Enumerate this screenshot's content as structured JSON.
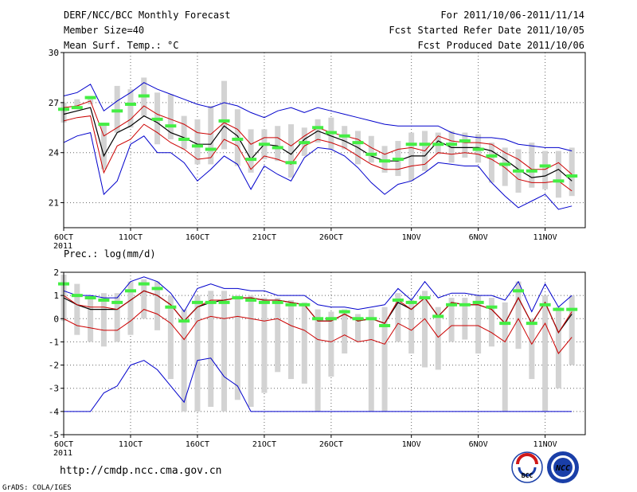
{
  "header": {
    "title": "DERF/NCC/BCC Monthly Forecast",
    "member_size": "Member Size=40",
    "variable": "Mean Surf. Temp.: °C",
    "period": "For 2011/10/06-2011/11/14",
    "started": "Fcst Started Refer Date 2011/10/05",
    "produced": "Fcst Produced Date 2011/10/06"
  },
  "footer": {
    "url": "http://cmdp.ncc.cma.gov.cn",
    "grads_credit": "GrADS: COLA/IGES",
    "logo_bcc_text": "BCC",
    "logo_ncc_text": "NCC"
  },
  "colors": {
    "ensemble_range": "#0000cc",
    "spread": "#cc0000",
    "mean": "#000000",
    "bar": "#d3d3d3",
    "marker": "#44ee44",
    "grid": "#666666"
  },
  "chart_data": [
    {
      "type": "line",
      "title": "Mean Surf. Temp.: °C",
      "ylim": [
        19.5,
        30
      ],
      "yticks": [
        21,
        24,
        27,
        30
      ],
      "day_range": [
        6,
        45
      ],
      "xtick_days": [
        6,
        11,
        16,
        21,
        26,
        32,
        37,
        42
      ],
      "xtick_labels": [
        "6OCT\n2011",
        "11OCT",
        "16OCT",
        "21OCT",
        "26OCT",
        "1NOV",
        "6NOV",
        "11NOV"
      ],
      "days": [
        6,
        7,
        8,
        9,
        10,
        11,
        12,
        13,
        14,
        15,
        16,
        17,
        18,
        19,
        20,
        21,
        22,
        23,
        24,
        25,
        26,
        27,
        28,
        29,
        30,
        31,
        32,
        33,
        34,
        35,
        36,
        37,
        38,
        39,
        40,
        41,
        42,
        43,
        44
      ],
      "series": [
        {
          "name": "ensemble-max",
          "values": [
            27.4,
            27.6,
            28.1,
            26.5,
            27.1,
            27.6,
            28.2,
            27.8,
            27.5,
            27.2,
            26.9,
            26.7,
            27.0,
            26.8,
            26.4,
            26.1,
            26.5,
            26.7,
            26.4,
            26.7,
            26.5,
            26.3,
            26.1,
            25.9,
            25.7,
            25.6,
            25.6,
            25.6,
            25.6,
            25.2,
            25.0,
            24.9,
            24.9,
            24.8,
            24.5,
            24.4,
            24.3,
            24.3,
            24.1
          ]
        },
        {
          "name": "spread-upper",
          "values": [
            26.7,
            26.8,
            27.1,
            25.0,
            25.5,
            26.0,
            26.8,
            26.3,
            26.0,
            25.7,
            25.2,
            25.1,
            25.8,
            25.4,
            24.5,
            24.9,
            24.9,
            24.4,
            25.0,
            25.5,
            25.2,
            25.0,
            24.8,
            24.3,
            23.9,
            24.2,
            24.3,
            24.1,
            25.0,
            24.7,
            24.6,
            24.6,
            24.5,
            24.0,
            23.6,
            23.0,
            23.0,
            23.4,
            22.7
          ]
        },
        {
          "name": "ensemble-mean",
          "values": [
            26.3,
            26.5,
            26.7,
            23.8,
            25.2,
            25.6,
            26.2,
            25.8,
            25.2,
            24.9,
            24.5,
            24.5,
            25.6,
            25.0,
            23.6,
            24.5,
            24.4,
            23.9,
            24.8,
            25.3,
            25.0,
            24.7,
            24.3,
            23.8,
            23.5,
            23.5,
            23.8,
            23.8,
            24.7,
            24.3,
            24.3,
            24.3,
            24.1,
            23.6,
            23.0,
            22.5,
            22.6,
            23.0,
            22.3
          ]
        },
        {
          "name": "spread-lower",
          "values": [
            25.9,
            26.1,
            26.2,
            22.8,
            24.4,
            24.8,
            25.7,
            25.2,
            24.6,
            24.2,
            23.6,
            23.7,
            24.8,
            24.4,
            23.0,
            23.8,
            23.6,
            23.3,
            24.4,
            24.8,
            24.6,
            24.3,
            23.8,
            23.3,
            23.0,
            23.0,
            23.2,
            23.3,
            24.0,
            23.9,
            24.0,
            23.9,
            23.6,
            23.1,
            22.4,
            22.2,
            22.2,
            22.3,
            21.7
          ]
        },
        {
          "name": "ensemble-min",
          "values": [
            24.6,
            25.0,
            25.2,
            21.5,
            22.3,
            24.5,
            25.0,
            24.0,
            24.0,
            23.4,
            22.3,
            23.0,
            23.8,
            23.3,
            21.8,
            23.2,
            22.7,
            22.3,
            23.7,
            24.3,
            24.2,
            23.8,
            23.1,
            22.2,
            21.5,
            22.1,
            22.3,
            22.8,
            23.4,
            23.3,
            23.2,
            23.2,
            22.2,
            21.4,
            20.7,
            21.1,
            21.5,
            20.6,
            20.8
          ]
        }
      ],
      "bars_low": [
        25.8,
        26.6,
        26.9,
        23.0,
        25.2,
        25.5,
        26.2,
        24.5,
        24.8,
        24.2,
        23.3,
        23.3,
        24.2,
        23.2,
        22.8,
        23.6,
        23.5,
        22.5,
        23.8,
        24.6,
        24.2,
        24.2,
        23.3,
        23.4,
        22.8,
        22.6,
        22.3,
        22.9,
        23.9,
        23.4,
        23.7,
        23.4,
        22.2,
        22.0,
        21.6,
        21.9,
        21.8,
        21.3,
        21.4
      ],
      "bars_high": [
        27.0,
        27.2,
        27.4,
        25.8,
        28.0,
        27.8,
        28.5,
        27.6,
        27.5,
        26.2,
        26.0,
        26.8,
        28.3,
        26.6,
        25.4,
        25.4,
        25.6,
        25.7,
        25.5,
        26.0,
        26.1,
        25.6,
        25.3,
        25.0,
        24.4,
        24.7,
        25.2,
        25.3,
        25.2,
        25.3,
        25.2,
        25.1,
        24.6,
        24.3,
        24.2,
        24.6,
        24.1,
        24.1,
        24.3
      ],
      "markers": [
        26.6,
        26.7,
        27.3,
        25.7,
        26.5,
        26.9,
        27.4,
        26.0,
        25.6,
        24.8,
        24.4,
        24.2,
        25.9,
        24.8,
        23.6,
        24.5,
        24.3,
        23.4,
        24.6,
        25.5,
        25.2,
        25.0,
        24.6,
        23.9,
        23.5,
        23.6,
        24.5,
        24.5,
        24.5,
        24.5,
        24.7,
        24.2,
        23.8,
        23.3,
        22.9,
        22.9,
        23.2,
        22.3,
        22.6
      ]
    },
    {
      "type": "line",
      "title": "Prec.: log(mm/d)",
      "ylim": [
        -5,
        2
      ],
      "yticks": [
        -5,
        -4,
        -3,
        -2,
        -1,
        0,
        1,
        2
      ],
      "day_range": [
        6,
        45
      ],
      "xtick_days": [
        6,
        11,
        16,
        21,
        26,
        32,
        37,
        42
      ],
      "xtick_labels": [
        "6OCT\n2011",
        "11OCT",
        "16OCT",
        "21OCT",
        "26OCT",
        "1NOV",
        "6NOV",
        "11NOV"
      ],
      "days": [
        6,
        7,
        8,
        9,
        10,
        11,
        12,
        13,
        14,
        15,
        16,
        17,
        18,
        19,
        20,
        21,
        22,
        23,
        24,
        25,
        26,
        27,
        28,
        29,
        30,
        31,
        32,
        33,
        34,
        35,
        36,
        37,
        38,
        39,
        40,
        41,
        42,
        43,
        44
      ],
      "series": [
        {
          "name": "ensemble-max",
          "values": [
            1.2,
            1.0,
            1.0,
            0.9,
            0.9,
            1.6,
            1.8,
            1.6,
            1.1,
            0.3,
            1.3,
            1.5,
            1.3,
            1.3,
            1.2,
            1.2,
            1.0,
            1.0,
            1.0,
            0.6,
            0.5,
            0.5,
            0.4,
            0.5,
            0.6,
            1.3,
            0.8,
            1.6,
            0.9,
            1.1,
            1.1,
            1.0,
            1.0,
            0.8,
            1.6,
            0.3,
            1.5,
            0.5,
            1.0
          ]
        },
        {
          "name": "ensemble-mean",
          "values": [
            0.9,
            0.6,
            0.4,
            0.4,
            0.4,
            0.8,
            1.2,
            1.0,
            0.6,
            -0.1,
            0.5,
            0.7,
            0.8,
            0.9,
            0.9,
            0.8,
            0.8,
            0.7,
            0.6,
            -0.1,
            -0.1,
            0.2,
            -0.1,
            0.0,
            -0.2,
            0.7,
            0.4,
            0.9,
            0.1,
            0.7,
            0.6,
            0.6,
            0.4,
            -0.2,
            0.9,
            -0.2,
            0.7,
            -0.6,
            0.2
          ]
        },
        {
          "name": "spread-upper",
          "values": [
            1.0,
            0.6,
            0.5,
            0.5,
            0.4,
            0.8,
            1.2,
            1.0,
            0.6,
            -0.1,
            0.5,
            0.8,
            0.8,
            0.9,
            0.9,
            0.8,
            0.8,
            0.7,
            0.6,
            -0.1,
            -0.1,
            0.2,
            -0.1,
            0.0,
            -0.2,
            0.8,
            0.4,
            0.9,
            0.1,
            0.7,
            0.6,
            0.6,
            0.4,
            -0.2,
            0.9,
            -0.2,
            0.7,
            -0.6,
            0.3
          ]
        },
        {
          "name": "spread-lower",
          "values": [
            0.0,
            -0.3,
            -0.4,
            -0.5,
            -0.5,
            -0.1,
            0.4,
            0.2,
            -0.2,
            -0.9,
            -0.1,
            0.1,
            0.0,
            0.1,
            0.0,
            -0.1,
            0.0,
            -0.3,
            -0.5,
            -0.9,
            -1.0,
            -0.7,
            -1.0,
            -0.9,
            -1.1,
            -0.2,
            -0.5,
            0.0,
            -0.8,
            -0.3,
            -0.3,
            -0.3,
            -0.6,
            -1.0,
            0.0,
            -1.1,
            -0.2,
            -1.5,
            -0.8
          ]
        },
        {
          "name": "ensemble-min",
          "values": [
            -4.0,
            -4.0,
            -4.0,
            -3.2,
            -2.9,
            -2.0,
            -1.8,
            -2.2,
            -2.9,
            -3.6,
            -1.8,
            -1.7,
            -2.5,
            -2.9,
            -4.0,
            -4.0,
            -4.0,
            -4.0,
            -4.0,
            -4.0,
            -4.0,
            -4.0,
            -4.0,
            -4.0,
            -4.0,
            -4.0,
            -4.0,
            -4.0,
            -4.0,
            -4.0,
            -4.0,
            -4.0,
            -4.0,
            -4.0,
            -4.0,
            -4.0,
            -4.0,
            -4.0,
            -4.0
          ]
        }
      ],
      "bars_low": [
        -0.1,
        -0.7,
        -1.0,
        -1.2,
        -1.0,
        -0.7,
        0.0,
        -0.5,
        -2.6,
        -4.0,
        -4.0,
        -3.8,
        -4.0,
        -3.5,
        -3.8,
        -3.2,
        -2.3,
        -2.6,
        -2.8,
        -4.0,
        -2.5,
        -1.5,
        -1.0,
        -4.0,
        -4.0,
        -1.0,
        -1.5,
        -2.1,
        -2.2,
        -1.0,
        -0.9,
        -1.5,
        -1.2,
        -4.0,
        -1.3,
        -2.6,
        -4.0,
        -3.0,
        -2.0
      ],
      "bars_high": [
        1.9,
        1.5,
        1.0,
        1.1,
        1.1,
        1.6,
        1.7,
        1.6,
        1.0,
        0.4,
        1.0,
        1.2,
        1.2,
        1.0,
        1.0,
        0.9,
        0.9,
        0.8,
        0.7,
        0.4,
        0.3,
        0.4,
        0.2,
        0.4,
        0.5,
        1.1,
        0.8,
        1.2,
        0.5,
        0.9,
        0.9,
        1.0,
        0.9,
        0.7,
        1.6,
        0.0,
        1.0,
        0.5,
        1.0
      ],
      "markers": [
        1.5,
        1.0,
        0.9,
        0.8,
        0.7,
        1.2,
        1.5,
        1.3,
        0.5,
        -0.1,
        0.7,
        0.7,
        0.7,
        0.9,
        0.8,
        0.7,
        0.7,
        0.6,
        0.6,
        0.0,
        0.0,
        0.3,
        0.0,
        0.0,
        -0.3,
        0.8,
        0.7,
        0.9,
        0.1,
        0.6,
        0.6,
        0.7,
        0.5,
        -0.2,
        1.2,
        -0.2,
        0.6,
        0.4,
        0.4
      ]
    }
  ]
}
